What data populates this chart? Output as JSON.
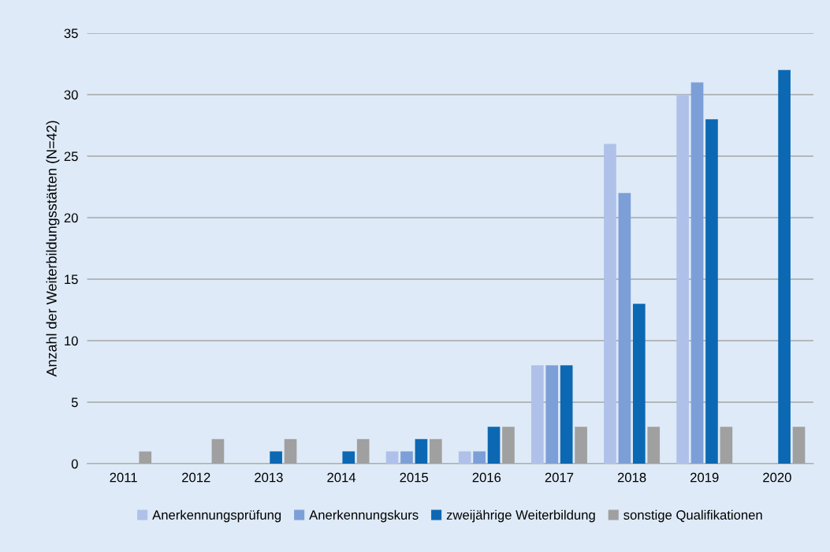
{
  "chart_data": {
    "type": "bar",
    "ylabel": "Anzahl der Weiterbildungsstätten (N=42)",
    "categories": [
      "2011",
      "2012",
      "2013",
      "2014",
      "2015",
      "2016",
      "2017",
      "2018",
      "2019",
      "2020"
    ],
    "series": [
      {
        "name": "Anerkennungsprüfung",
        "color": "#afc1e9",
        "values": [
          0,
          0,
          0,
          0,
          1,
          1,
          8,
          26,
          30,
          0
        ]
      },
      {
        "name": "Anerkennungskurs",
        "color": "#7d9fd8",
        "values": [
          0,
          0,
          0,
          0,
          1,
          1,
          8,
          22,
          31,
          0
        ]
      },
      {
        "name": "zweijährige Weiterbildung",
        "color": "#0c68b3",
        "values": [
          0,
          0,
          1,
          1,
          2,
          3,
          8,
          13,
          28,
          32
        ]
      },
      {
        "name": "sonstige Qualifikationen",
        "color": "#a0a0a0",
        "values": [
          1,
          2,
          2,
          2,
          2,
          3,
          3,
          3,
          3,
          3
        ]
      }
    ],
    "ylim": [
      0,
      35
    ],
    "yticks": [
      0,
      5,
      10,
      15,
      20,
      25,
      30,
      35
    ],
    "grid": "y",
    "legend": "bottom"
  }
}
